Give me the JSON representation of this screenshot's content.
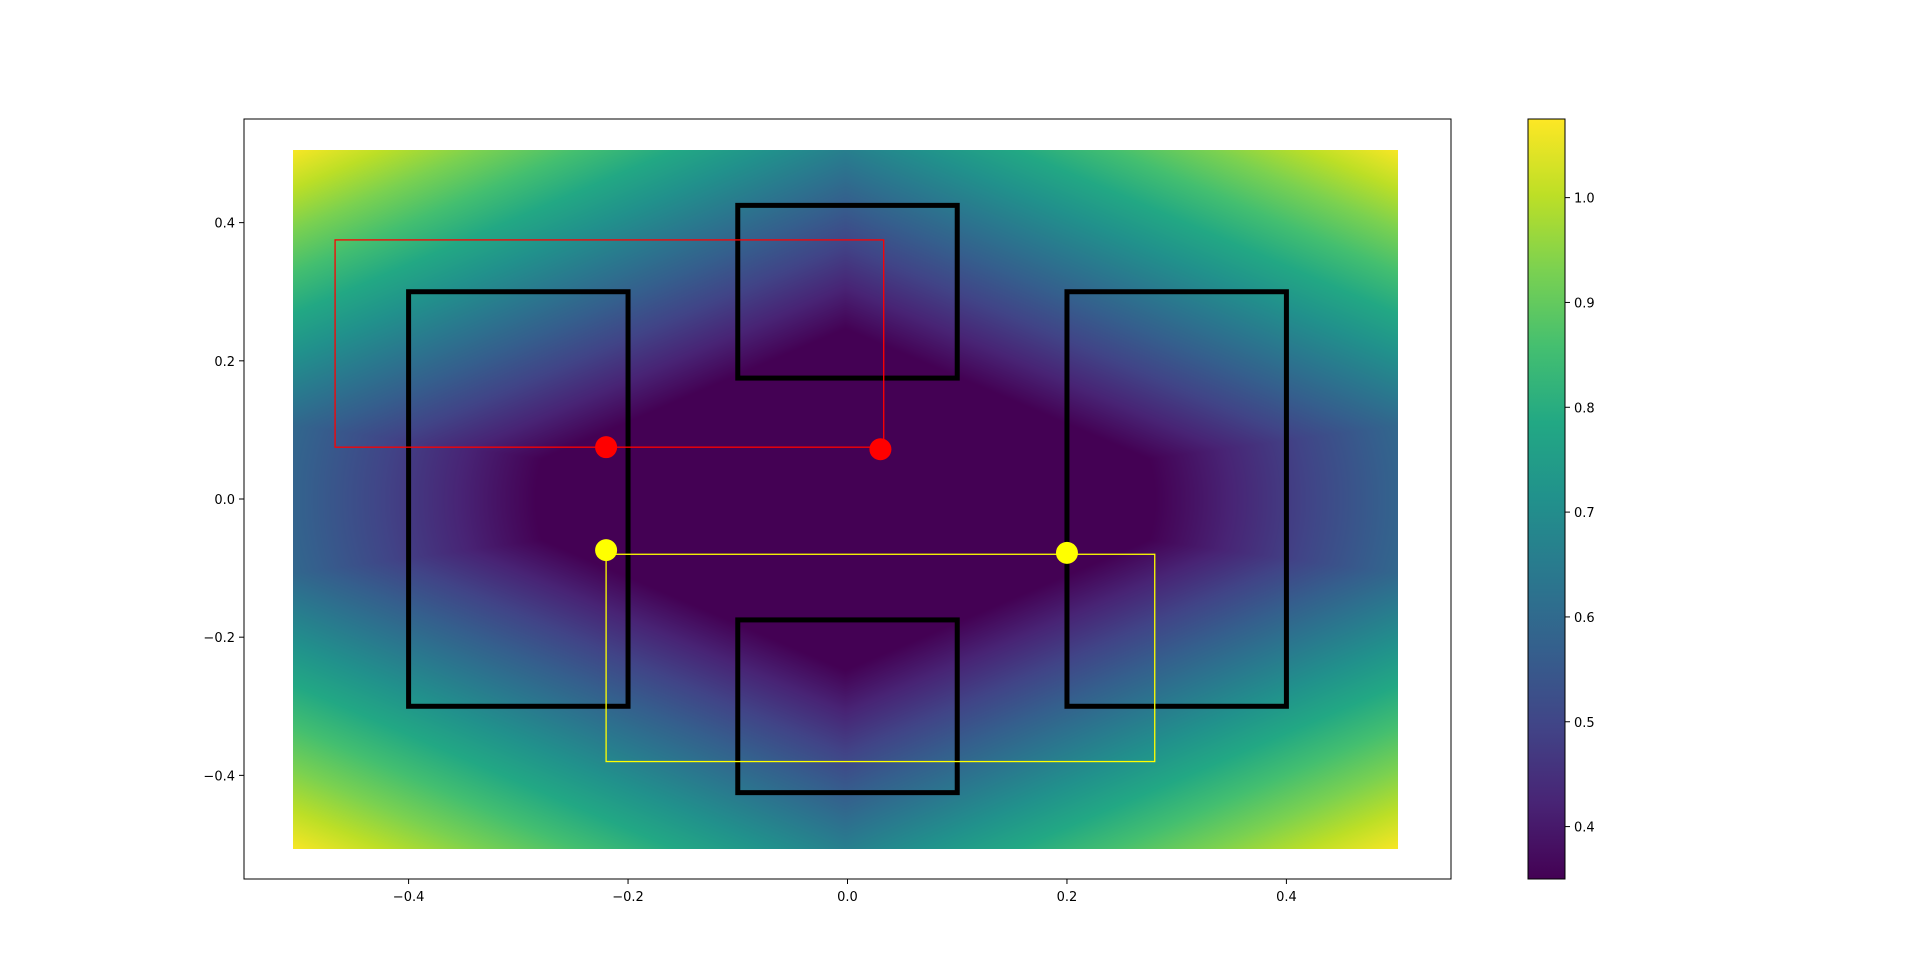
{
  "chart_data": {
    "type": "heatmap",
    "title": "",
    "xlabel": "",
    "ylabel": "",
    "xlim": [
      -0.55,
      0.55
    ],
    "ylim": [
      -0.55,
      0.55
    ],
    "grid": false,
    "x_ticks": [
      {
        "value": -0.4,
        "label": "−0.4"
      },
      {
        "value": -0.2,
        "label": "−0.2"
      },
      {
        "value": 0.0,
        "label": "0.0"
      },
      {
        "value": 0.2,
        "label": "0.2"
      },
      {
        "value": 0.4,
        "label": "0.4"
      }
    ],
    "y_ticks": [
      {
        "value": -0.4,
        "label": "−0.4"
      },
      {
        "value": -0.2,
        "label": "−0.2"
      },
      {
        "value": 0.0,
        "label": "0.0"
      },
      {
        "value": 0.2,
        "label": "0.2"
      },
      {
        "value": 0.4,
        "label": "0.4"
      }
    ],
    "heatmap": {
      "extent": [
        -0.5,
        0.5,
        -0.5,
        0.5
      ],
      "colormap": "viridis",
      "vmin": 0.35,
      "vmax": 1.075
    },
    "colorbar": {
      "range": [
        0.35,
        1.075
      ],
      "ticks": [
        {
          "value": 0.4,
          "label": "0.4"
        },
        {
          "value": 0.5,
          "label": "0.5"
        },
        {
          "value": 0.6,
          "label": "0.6"
        },
        {
          "value": 0.7,
          "label": "0.7"
        },
        {
          "value": 0.8,
          "label": "0.8"
        },
        {
          "value": 0.9,
          "label": "0.9"
        },
        {
          "value": 1.0,
          "label": "1.0"
        }
      ]
    },
    "obstacles": [
      {
        "x0": -0.4,
        "y0": -0.3,
        "x1": -0.2,
        "y1": 0.3
      },
      {
        "x0": 0.2,
        "y0": -0.3,
        "x1": 0.4,
        "y1": 0.3
      },
      {
        "x0": -0.1,
        "y0": 0.175,
        "x1": 0.1,
        "y1": 0.425
      },
      {
        "x0": -0.1,
        "y0": -0.425,
        "x1": 0.1,
        "y1": -0.175
      }
    ],
    "markers": [
      {
        "name": "red-start",
        "x": -0.22,
        "y": 0.075,
        "color": "#ff0000"
      },
      {
        "name": "red-end",
        "x": 0.03,
        "y": 0.072,
        "color": "#ff0000"
      },
      {
        "name": "yellow-start",
        "x": -0.22,
        "y": -0.074,
        "color": "#ffff00"
      },
      {
        "name": "yellow-end",
        "x": 0.2,
        "y": -0.078,
        "color": "#ffff00"
      }
    ],
    "boxes": [
      {
        "name": "red-box",
        "x0": -0.467,
        "y0": 0.075,
        "x1": 0.033,
        "y1": 0.375,
        "color": "#ff0000"
      },
      {
        "name": "yellow-box",
        "x0": -0.22,
        "y0": -0.38,
        "x1": 0.28,
        "y1": -0.08,
        "color": "#ffff00"
      }
    ]
  }
}
